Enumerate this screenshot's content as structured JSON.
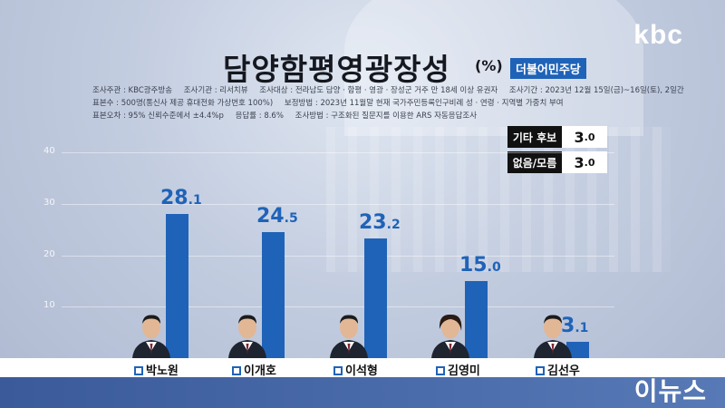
{
  "broadcaster": "kbc",
  "watermark": "이뉴스",
  "chart_data": {
    "type": "bar",
    "title": "담양함평영광장성",
    "unit": "(%)",
    "party": "더불어민주당",
    "categories": [
      "박노원",
      "이개호",
      "이석형",
      "김영미",
      "김선우"
    ],
    "values": [
      28.1,
      24.5,
      23.2,
      15.0,
      3.1
    ],
    "value_labels": [
      {
        "int": "28",
        "dec": ".1"
      },
      {
        "int": "24",
        "dec": ".5"
      },
      {
        "int": "23",
        "dec": ".2"
      },
      {
        "int": "15",
        "dec": ".0"
      },
      {
        "int": "3",
        "dec": ".1"
      }
    ],
    "yticks": [
      "10",
      "20",
      "30",
      "40"
    ],
    "ylim": [
      0,
      40
    ],
    "grid": true,
    "color": "#1f63b8",
    "others": [
      {
        "label": "기타 후보",
        "int": "3",
        "dec": ".0"
      },
      {
        "label": "없음/모름",
        "int": "3",
        "dec": ".0"
      }
    ]
  },
  "meta": {
    "line1": [
      "조사주관 : KBC광주방송",
      "조사기관 : 리서치뷰",
      "조사대상 : 전라남도 담양 · 함평 · 영광 · 장성군 거주 만 18세 이상 유권자",
      "조사기간 : 2023년 12월 15일(금)~16일(토), 2일간"
    ],
    "line2": [
      "표본수 : 500명(통신사 제공 휴대전화 가상번호 100%)",
      "보정방법 : 2023년 11월말 현재 국가주민등록인구비례 성 · 연령 · 지역별 가중치 부여"
    ],
    "line3": [
      "표본오차 : 95% 신뢰수준에서 ±4.4%p",
      "응답률 : 8.6%",
      "조사방법 : 구조화된 질문지를 이용한 ARS 자동응답조사"
    ]
  }
}
